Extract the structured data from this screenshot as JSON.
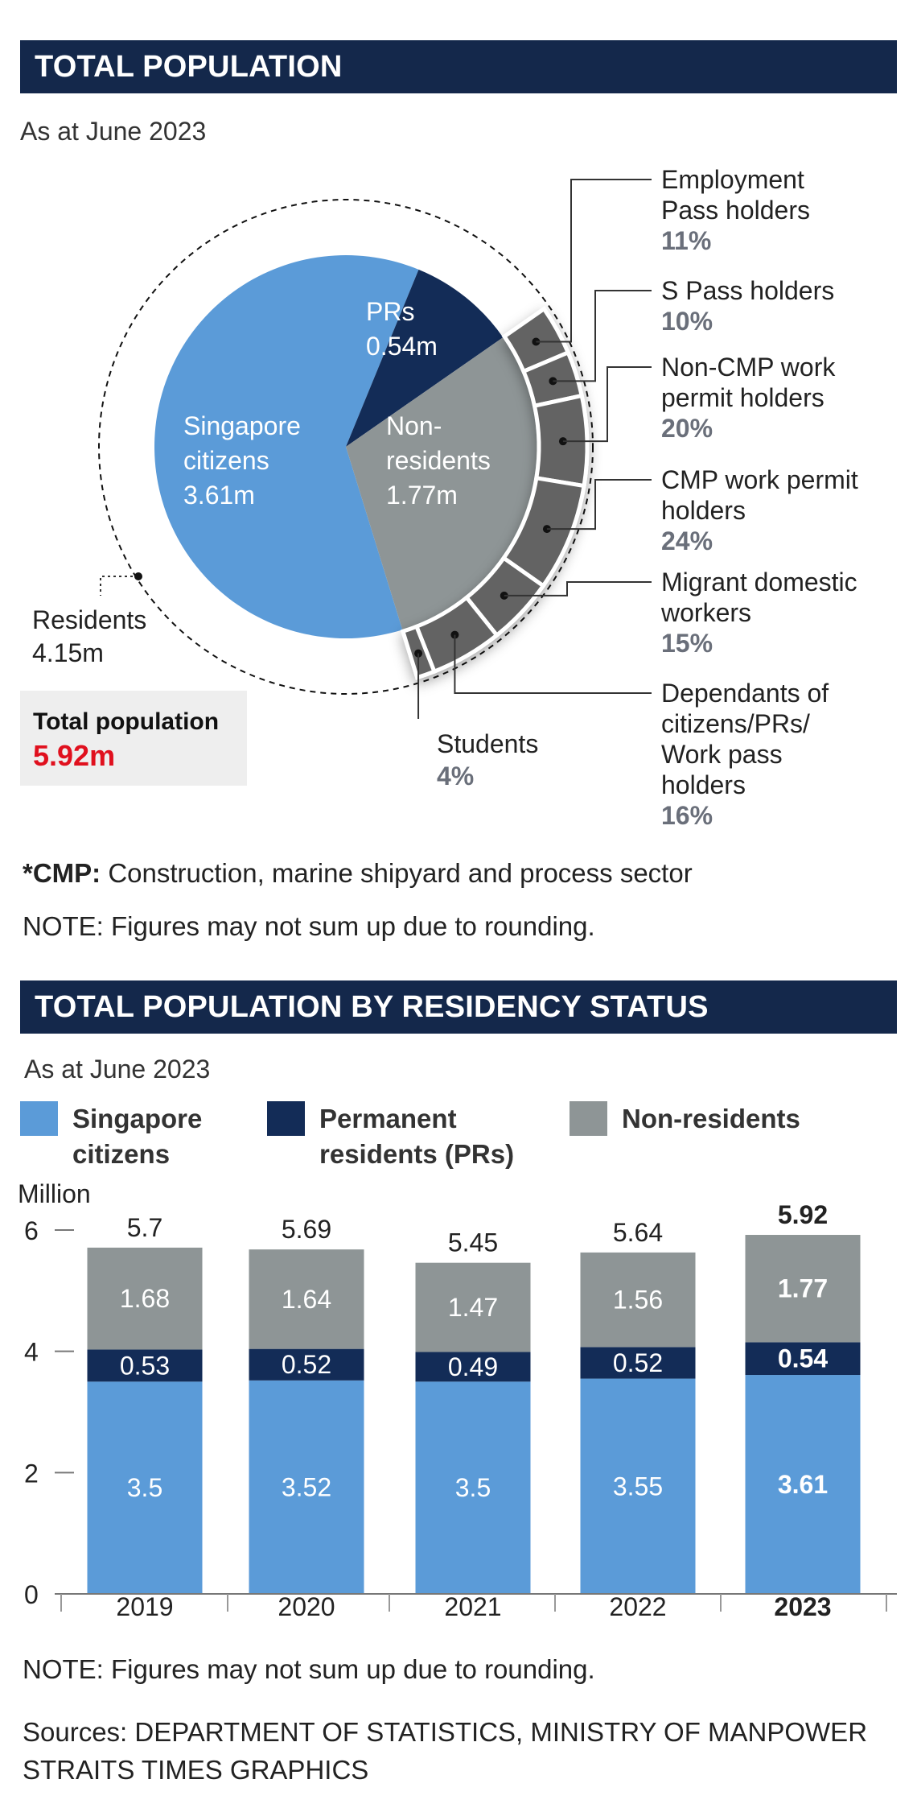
{
  "section1": {
    "title": "TOTAL POPULATION",
    "subtitle": "As at June 2023",
    "pie_labels": {
      "citizens": [
        "Singapore",
        "citizens",
        "3.61m"
      ],
      "prs": [
        "PRs",
        "0.54m"
      ],
      "nonres": [
        "Non-",
        "residents",
        "1.77m"
      ]
    },
    "residents_label": [
      "Residents",
      "4.15m"
    ],
    "total": {
      "label": "Total population",
      "value": "5.92m"
    },
    "breakdown": [
      {
        "lines": [
          "Employment",
          "Pass holders"
        ],
        "pct": "11%"
      },
      {
        "lines": [
          "S Pass holders"
        ],
        "pct": "10%"
      },
      {
        "lines": [
          "Non-CMP work",
          "permit holders"
        ],
        "pct": "20%"
      },
      {
        "lines": [
          "CMP work permit",
          "holders"
        ],
        "pct": "24%"
      },
      {
        "lines": [
          "Migrant domestic",
          "workers"
        ],
        "pct": "15%"
      },
      {
        "lines": [
          "Dependants of",
          "citizens/PRs/",
          "Work pass",
          "holders"
        ],
        "pct": "16%"
      }
    ],
    "students": {
      "label": "Students",
      "pct": "4%"
    },
    "footnote_term": "*CMP:",
    "footnote_text": " Construction, marine shipyard and process sector",
    "note": "NOTE: Figures may not sum up due to rounding."
  },
  "section2": {
    "title": "TOTAL POPULATION BY RESIDENCY STATUS",
    "subtitle": "As at June 2023",
    "note": "NOTE: Figures may not sum up due to rounding.",
    "sources": "Sources: DEPARTMENT OF STATISTICS, MINISTRY OF MANPOWER",
    "credit": "STRAITS TIMES GRAPHICS"
  },
  "colors": {
    "citizens": "#5b9bd8",
    "prs": "#132c57",
    "nonres": "#8e9596",
    "ring": "#636363",
    "banner": "#14284b",
    "highlight": "#e0101e"
  },
  "chart_data": [
    {
      "type": "pie",
      "title": "TOTAL POPULATION",
      "subtitle": "As at June 2023",
      "slices": [
        {
          "name": "Singapore citizens",
          "value": 3.61
        },
        {
          "name": "PRs",
          "value": 0.54
        },
        {
          "name": "Non-residents",
          "value": 1.77
        }
      ],
      "non_resident_breakdown": [
        {
          "name": "Employment Pass holders",
          "value": 11
        },
        {
          "name": "S Pass holders",
          "value": 10
        },
        {
          "name": "Non-CMP work permit holders",
          "value": 20
        },
        {
          "name": "CMP work permit holders",
          "value": 24
        },
        {
          "name": "Migrant domestic workers",
          "value": 15
        },
        {
          "name": "Dependants of citizens/PRs/Work pass holders",
          "value": 16
        },
        {
          "name": "Students",
          "value": 4
        }
      ],
      "residents_total": 4.15,
      "total": 5.92
    },
    {
      "type": "bar",
      "stacked": true,
      "title": "TOTAL POPULATION BY RESIDENCY STATUS",
      "ylabel": "Million",
      "ylim": [
        0,
        6
      ],
      "yticks": [
        0,
        2,
        4,
        6
      ],
      "categories": [
        "2019",
        "2020",
        "2021",
        "2022",
        "2023"
      ],
      "series": [
        {
          "name": "Singapore citizens",
          "values": [
            3.5,
            3.52,
            3.5,
            3.55,
            3.61
          ],
          "labels": [
            "3.5",
            "3.52",
            "3.5",
            "3.55",
            "3.61"
          ]
        },
        {
          "name": "Permanent residents (PRs)",
          "values": [
            0.53,
            0.52,
            0.49,
            0.52,
            0.54
          ],
          "labels": [
            "0.53",
            "0.52",
            "0.49",
            "0.52",
            "0.54"
          ]
        },
        {
          "name": "Non-residents",
          "values": [
            1.68,
            1.64,
            1.47,
            1.56,
            1.77
          ],
          "labels": [
            "1.68",
            "1.64",
            "1.47",
            "1.56",
            "1.77"
          ]
        }
      ],
      "totals": [
        "5.7",
        "5.69",
        "5.45",
        "5.64",
        "5.92"
      ],
      "highlight_category": "2023",
      "legend": [
        "Singapore\ncitizens",
        "Permanent\nresidents (PRs)",
        "Non-residents"
      ]
    }
  ]
}
